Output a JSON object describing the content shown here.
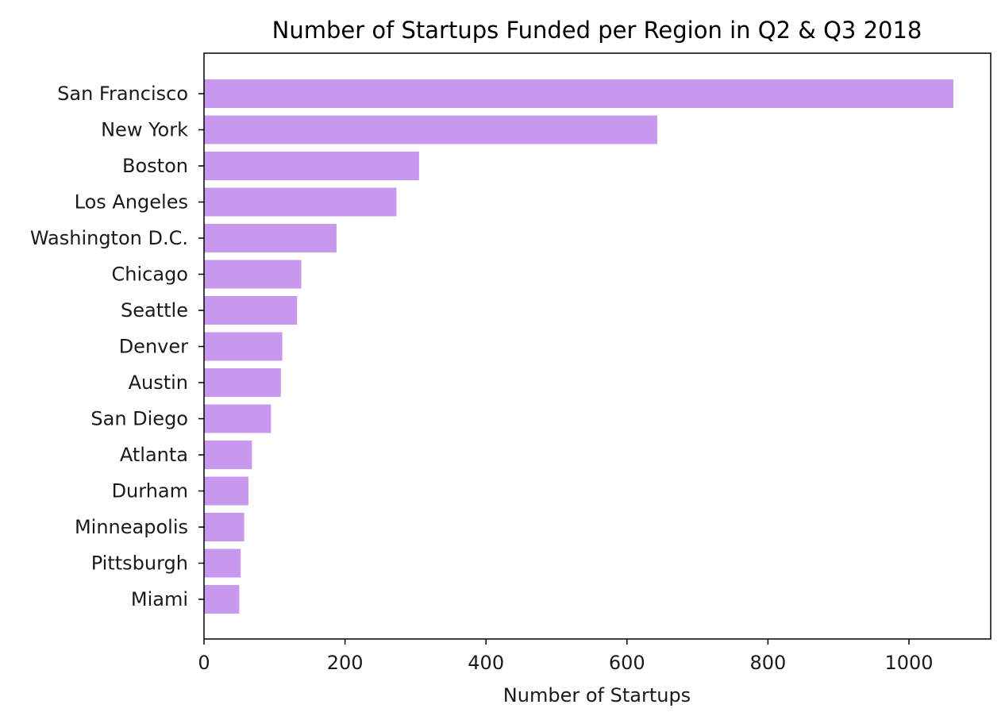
{
  "chart_data": {
    "type": "bar",
    "orientation": "horizontal",
    "title": "Number of Startups Funded per Region in Q2 & Q3 2018",
    "xlabel": "Number of Startups",
    "ylabel": "",
    "categories": [
      "San Francisco",
      "New York",
      "Boston",
      "Los Angeles",
      "Washington D.C.",
      "Chicago",
      "Seattle",
      "Denver",
      "Austin",
      "San Diego",
      "Atlanta",
      "Durham",
      "Minneapolis",
      "Pittsburgh",
      "Miami"
    ],
    "values": [
      1063,
      643,
      305,
      273,
      188,
      138,
      132,
      111,
      109,
      95,
      68,
      63,
      57,
      52,
      50
    ],
    "xlim": [
      0,
      1116
    ],
    "xticks": [
      0,
      200,
      400,
      600,
      800,
      1000
    ],
    "bar_color": "#c898ee",
    "grid": false,
    "legend": "none"
  }
}
